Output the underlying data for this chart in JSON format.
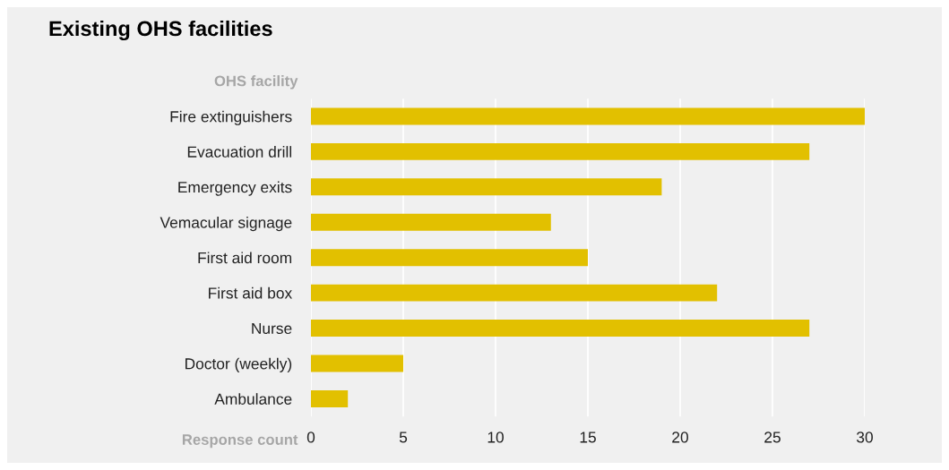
{
  "chart_data": {
    "type": "bar",
    "orientation": "horizontal",
    "title": "Existing OHS facilities",
    "ylabel": "OHS facility",
    "xlabel": "Response count",
    "categories": [
      "Fire extinguishers",
      "Evacuation drill",
      "Emergency exits",
      "Vemacular signage",
      "First aid room",
      "First aid box",
      "Nurse",
      "Doctor (weekly)",
      "Ambulance"
    ],
    "values": [
      30,
      27,
      19,
      13,
      15,
      22,
      27,
      5,
      2
    ],
    "color": "#e2c000",
    "xlim": [
      0,
      30
    ],
    "xticks": [
      0,
      5,
      10,
      15,
      20,
      25,
      30
    ],
    "grid": "x"
  }
}
